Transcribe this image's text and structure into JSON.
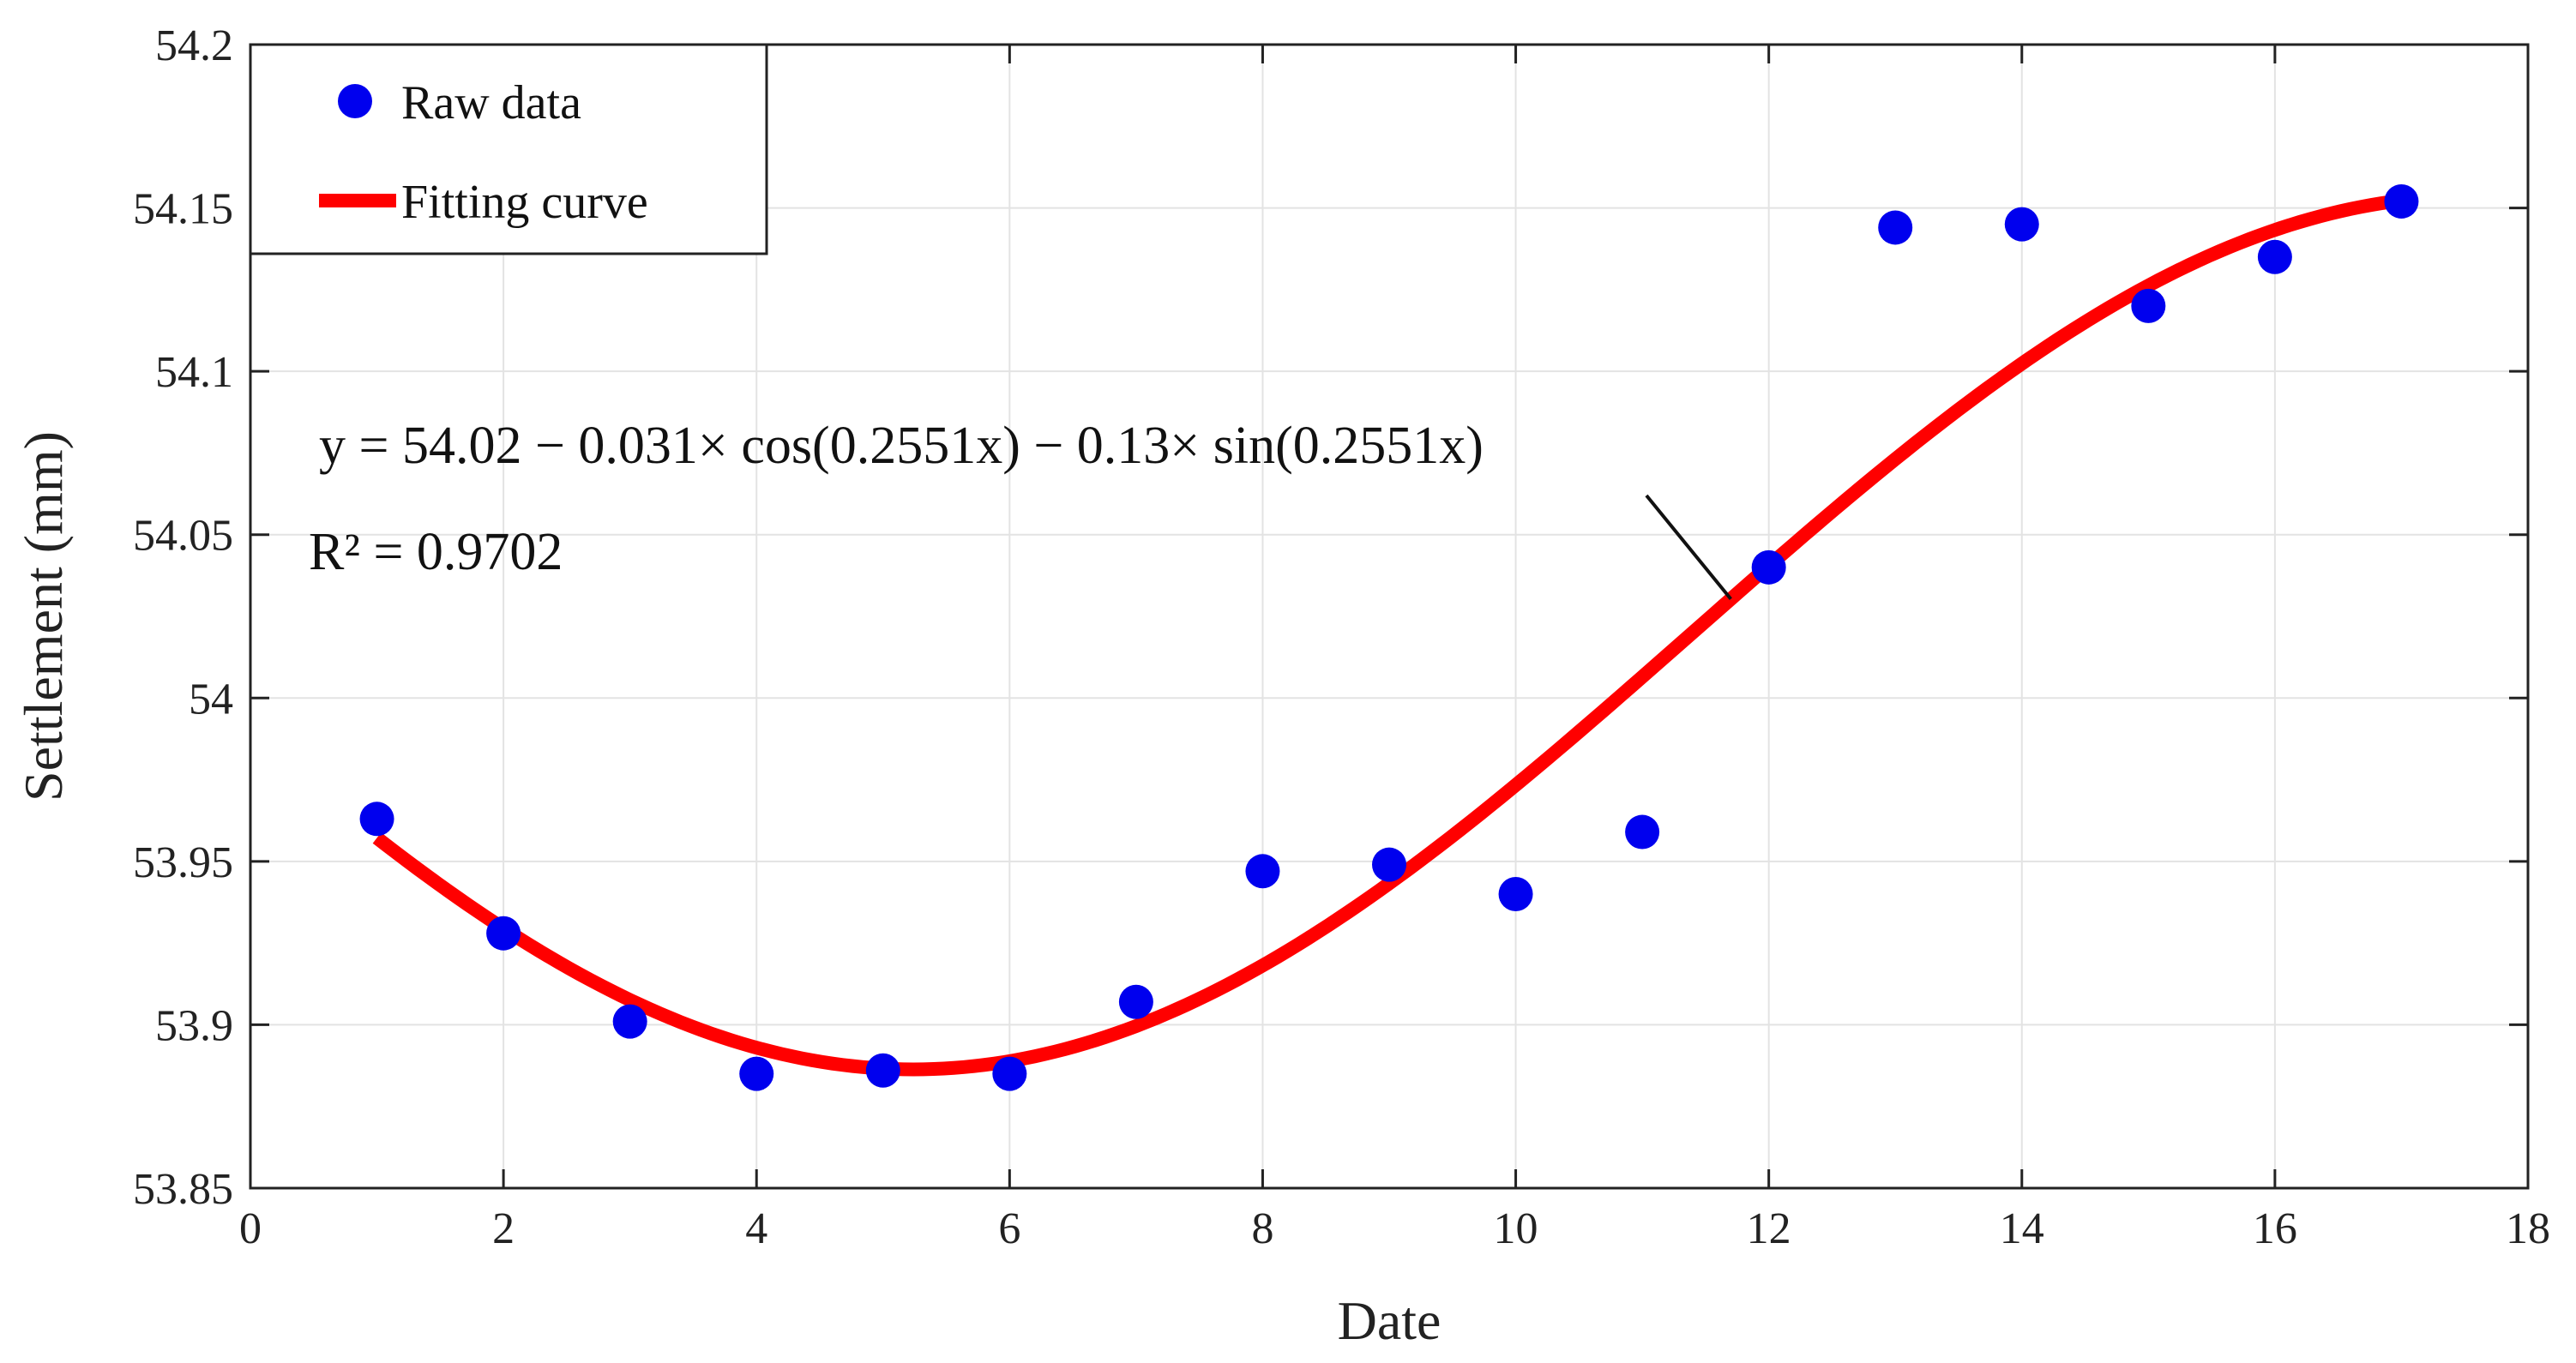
{
  "chart_data": {
    "type": "scatter",
    "title": "",
    "xlabel": "Date",
    "ylabel": "Settlement (mm)",
    "xlim": [
      0,
      18
    ],
    "ylim": [
      53.85,
      54.2
    ],
    "xticks": [
      0,
      2,
      4,
      6,
      8,
      10,
      12,
      14,
      16,
      18
    ],
    "xtick_labels": [
      "0",
      "2",
      "4",
      "6",
      "8",
      "10",
      "12",
      "14",
      "16",
      "18"
    ],
    "yticks": [
      53.85,
      53.9,
      53.95,
      54,
      54.05,
      54.1,
      54.15,
      54.2
    ],
    "ytick_labels": [
      "53.85",
      "53.9",
      "53.95",
      "54",
      "54.05",
      "54.1",
      "54.15",
      "54.2"
    ],
    "grid": true,
    "legend_position": "top-left",
    "series": [
      {
        "name": "Raw data",
        "kind": "scatter",
        "color": "#0000ee",
        "x": [
          1,
          2,
          3,
          4,
          5,
          6,
          7,
          8,
          9,
          10,
          11,
          12,
          13,
          14,
          15,
          16,
          17
        ],
        "y": [
          53.963,
          53.928,
          53.901,
          53.885,
          53.886,
          53.885,
          53.907,
          53.947,
          53.949,
          53.94,
          53.959,
          54.04,
          54.144,
          54.145,
          54.12,
          54.135,
          54.152
        ]
      },
      {
        "name": "Fitting curve",
        "kind": "line",
        "color": "#ff0000",
        "formula": {
          "a0": 54.02,
          "a1": -0.031,
          "b1": -0.13,
          "w": 0.2551
        },
        "x_range": [
          1,
          17
        ]
      }
    ],
    "annotations": {
      "equation": "y = 54.02 − 0.031× cos(0.2551x) − 0.13× sin(0.2551x)",
      "r_squared": "R² = 0.9702",
      "arrow_to_x": 11.7
    }
  }
}
